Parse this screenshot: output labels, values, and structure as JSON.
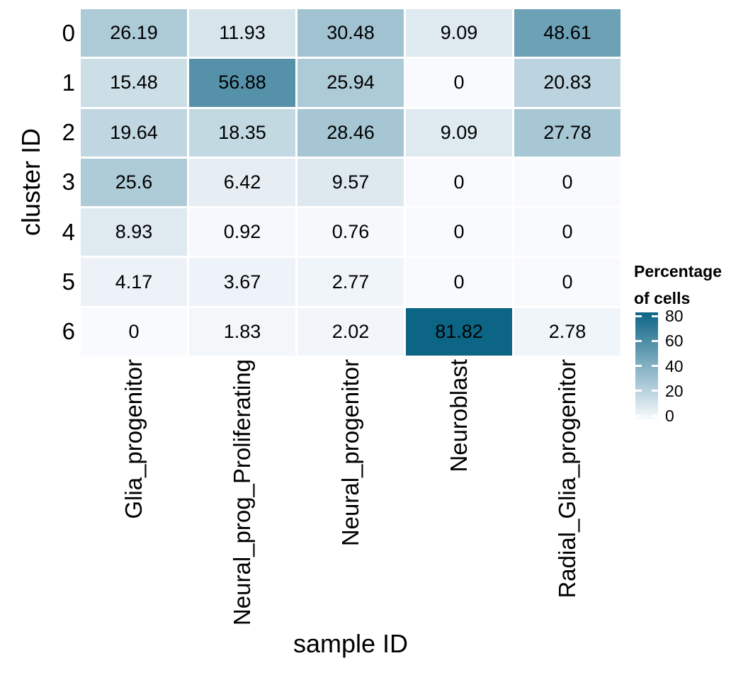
{
  "chart_data": {
    "type": "heatmap",
    "title": "",
    "xlabel": "sample ID",
    "ylabel": "cluster ID",
    "columns": [
      "Glia_progenitor",
      "Neural_prog_Proliferating",
      "Neural_progenitor",
      "Neuroblast",
      "Radial_Glia_progenitor"
    ],
    "rows": [
      "0",
      "1",
      "2",
      "3",
      "4",
      "5",
      "6"
    ],
    "values": [
      [
        26.19,
        11.93,
        30.48,
        9.09,
        48.61
      ],
      [
        15.48,
        56.88,
        25.94,
        0,
        20.83
      ],
      [
        19.64,
        18.35,
        28.46,
        9.09,
        27.78
      ],
      [
        25.6,
        6.42,
        9.57,
        0,
        0
      ],
      [
        8.93,
        0.92,
        0.76,
        0,
        0
      ],
      [
        4.17,
        3.67,
        2.77,
        0,
        0
      ],
      [
        0,
        1.83,
        2.02,
        81.82,
        2.78
      ]
    ],
    "value_range": [
      0,
      81.82
    ],
    "grid": "white-gaps",
    "legend": {
      "position": "right",
      "title_lines": [
        "Percentage",
        "of cells"
      ],
      "ticks": [
        "80",
        "60",
        "40",
        "20",
        "0"
      ]
    },
    "colors": {
      "low": "#F8FAFD",
      "high": "#0D6586",
      "max_value": 81.82
    }
  }
}
